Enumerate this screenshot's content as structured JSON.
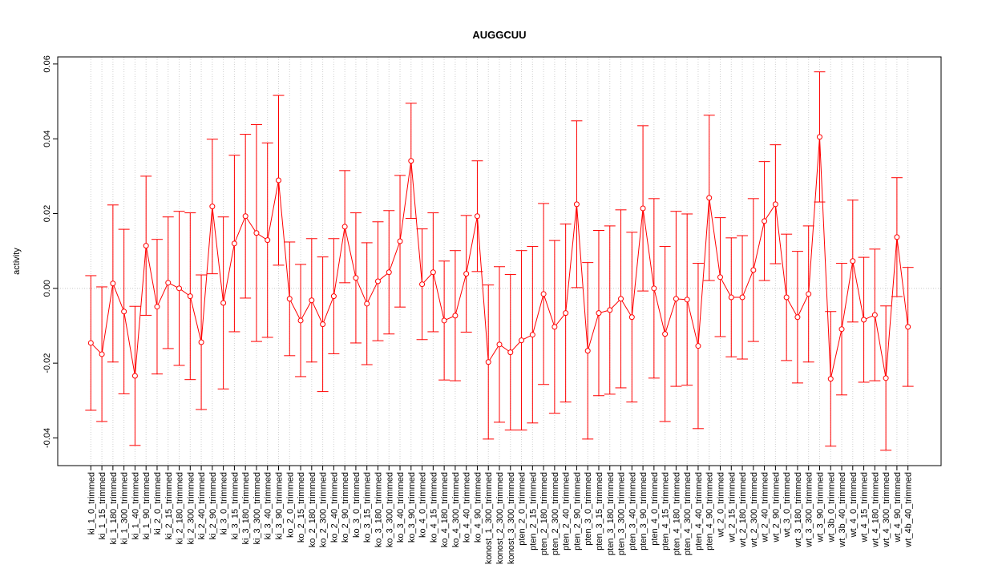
{
  "chart_data": {
    "type": "line",
    "title": "AUGGCUU",
    "y_label": "activity",
    "categories": [
      "ki_1_0_trimmed",
      "ki_1_15_trimmed",
      "ki_1_180_trimmed",
      "ki_1_300_trimmed",
      "ki_1_40_trimmed",
      "ki_1_90_trimmed",
      "ki_2_0_trimmed",
      "ki_2_15_trimmed",
      "ki_2_180_trimmed",
      "ki_2_300_trimmed",
      "ki_2_40_trimmed",
      "ki_2_90_trimmed",
      "ki_3_0_trimmed",
      "ki_3_15_trimmed",
      "ki_3_180_trimmed",
      "ki_3_300_trimmed",
      "ki_3_40_trimmed",
      "ki_3_90_trimmed",
      "ko_2_0_trimmed",
      "ko_2_15_trimmed",
      "ko_2_180_trimmed",
      "ko_2_300_trimmed",
      "ko_2_40_trimmed",
      "ko_2_90_trimmed",
      "ko_3_0_trimmed",
      "ko_3_15_trimmed",
      "ko_3_180_trimmed",
      "ko_3_300_trimmed",
      "ko_3_40_trimmed",
      "ko_3_90_trimmed",
      "ko_4_0_trimmed",
      "ko_4_15_trimmed",
      "ko_4_180_trimmed",
      "ko_4_300_trimmed",
      "ko_4_40_trimmed",
      "ko_4_90_trimmed",
      "konost_1_300_trimmed",
      "konost_2_300_trimmed",
      "konost_3_300_trimmed",
      "pten_2_0_trimmed",
      "pten_2_15_trimmed",
      "pten_2_180_trimmed",
      "pten_2_300_trimmed",
      "pten_2_40_trimmed",
      "pten_2_90_trimmed",
      "pten_3_0_trimmed",
      "pten_3_15_trimmed",
      "pten_3_180_trimmed",
      "pten_3_300_trimmed",
      "pten_3_40_trimmed",
      "pten_3_90_trimmed",
      "pten_4_0_trimmed",
      "pten_4_15_trimmed",
      "pten_4_180_trimmed",
      "pten_4_300_trimmed",
      "pten_4_40_trimmed",
      "pten_4_90_trimmed",
      "wt_2_0_trimmed",
      "wt_2_15_trimmed",
      "wt_2_180_trimmed",
      "wt_2_300_trimmed",
      "wt_2_40_trimmed",
      "wt_2_90_trimmed",
      "wt_3_0_trimmed",
      "wt_3_180_trimmed",
      "wt_3_300_trimmed",
      "wt_3_90_trimmed",
      "wt_3b_0_trimmed",
      "wt_3b_40_trimmed",
      "wt_4_0_trimmed",
      "wt_4_15_trimmed",
      "wt_4_180_trimmed",
      "wt_4_300_trimmed",
      "wt_4_90_trimmed",
      "wt_4b_40_trimmed"
    ],
    "values": [
      -0.0146,
      -0.0176,
      0.0013,
      -0.0062,
      -0.0234,
      0.0114,
      -0.0049,
      0.0015,
      0,
      -0.0021,
      -0.0144,
      0.0219,
      -0.0039,
      0.012,
      0.0193,
      0.0148,
      0.0129,
      0.0289,
      -0.0028,
      -0.0086,
      -0.0032,
      -0.0096,
      -0.0021,
      0.0165,
      0.0028,
      -0.0041,
      0.0019,
      0.0043,
      0.0126,
      0.0341,
      0.0011,
      0.0043,
      -0.0086,
      -0.0073,
      0.0039,
      0.0193,
      -0.0197,
      -0.015,
      -0.0171,
      -0.0139,
      -0.0124,
      -0.0015,
      -0.0103,
      -0.0066,
      0.0225,
      -0.0167,
      -0.0066,
      -0.0058,
      -0.0028,
      -0.0077,
      0.0214,
      0,
      -0.0122,
      -0.0028,
      -0.003,
      -0.0154,
      0.0242,
      0.003,
      -0.0024,
      -0.0024,
      0.0049,
      0.018,
      0.0225,
      -0.0024,
      -0.0077,
      -0.0015,
      0.0405,
      -0.0242,
      -0.0109,
      0.0073,
      -0.0084,
      -0.0071,
      -0.024,
      0.0137,
      -0.0103
    ],
    "errors": [
      0.018,
      0.018,
      0.021,
      0.022,
      0.0186,
      0.0186,
      0.018,
      0.0176,
      0.0206,
      0.0223,
      0.018,
      0.018,
      0.023,
      0.0236,
      0.0219,
      0.029,
      0.026,
      0.0227,
      0.0152,
      0.015,
      0.0165,
      0.018,
      0.0154,
      0.015,
      0.0174,
      0.0163,
      0.0159,
      0.0165,
      0.0176,
      0.0154,
      0.0148,
      0.0159,
      0.0159,
      0.0174,
      0.0156,
      0.0148,
      0.0206,
      0.0208,
      0.0208,
      0.024,
      0.0236,
      0.0242,
      0.0231,
      0.0238,
      0.0223,
      0.0236,
      0.0221,
      0.0225,
      0.0238,
      0.0227,
      0.0221,
      0.024,
      0.0234,
      0.0234,
      0.0229,
      0.0221,
      0.0221,
      0.0159,
      0.0159,
      0.0165,
      0.0191,
      0.0159,
      0.0159,
      0.0169,
      0.0176,
      0.0182,
      0.0174,
      0.018,
      0.0176,
      0.0163,
      0.0167,
      0.0176,
      0.0193,
      0.0159,
      0.0159
    ],
    "color": "#ff0000",
    "ylim": [
      -0.0474,
      0.0619
    ],
    "yticks": [
      -0.04,
      -0.02,
      {
        "value": 0,
        "label": "0.00"
      },
      0.02,
      0.04,
      0.06
    ],
    "reference_line": 0,
    "grid": true
  }
}
